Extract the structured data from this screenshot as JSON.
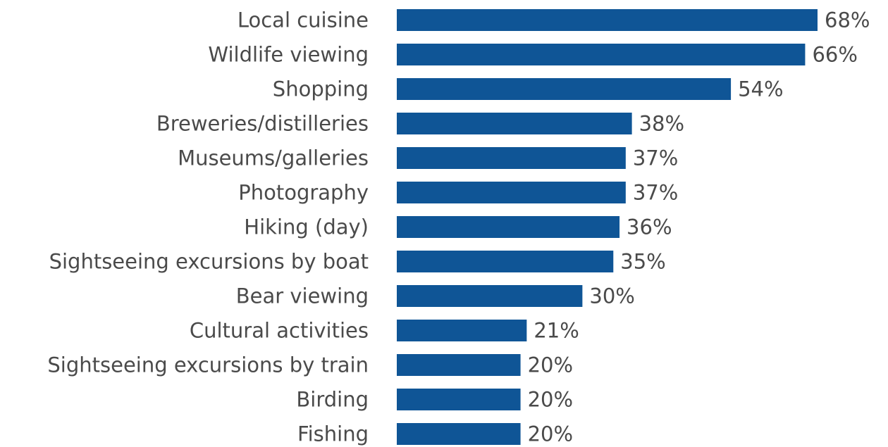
{
  "chart_data": {
    "type": "bar",
    "orientation": "horizontal",
    "categories": [
      "Local cuisine",
      "Wildlife viewing",
      "Shopping",
      "Breweries/distilleries",
      "Museums/galleries",
      "Photography",
      "Hiking (day)",
      "Sightseeing excursions by boat",
      "Bear viewing",
      "Cultural activities",
      "Sightseeing excursions by train",
      "Birding",
      "Fishing"
    ],
    "values": [
      68,
      66,
      54,
      38,
      37,
      37,
      36,
      35,
      30,
      21,
      20,
      20,
      20
    ],
    "value_labels": [
      "68%",
      "66%",
      "54%",
      "38%",
      "37%",
      "37%",
      "36%",
      "35%",
      "30%",
      "21%",
      "20%",
      "20%",
      "20%"
    ],
    "unit": "%",
    "xlim": [
      0,
      68
    ],
    "grid": false,
    "legend": "none",
    "colors": {
      "bar": "#0f5596",
      "text": "#4a4a4a",
      "background": "#ffffff"
    }
  }
}
